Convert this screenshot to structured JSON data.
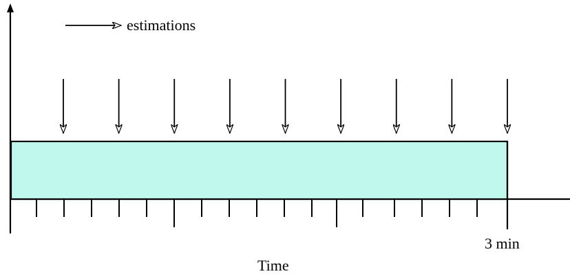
{
  "legend": {
    "label": "estimations",
    "icon": "right-arrow-icon"
  },
  "diagram": {
    "fill_color": "#c0f8ee",
    "stroke_color": "#000000",
    "estimation_count": 9,
    "end_marker_label": "3 min",
    "axis_label": "Time"
  }
}
